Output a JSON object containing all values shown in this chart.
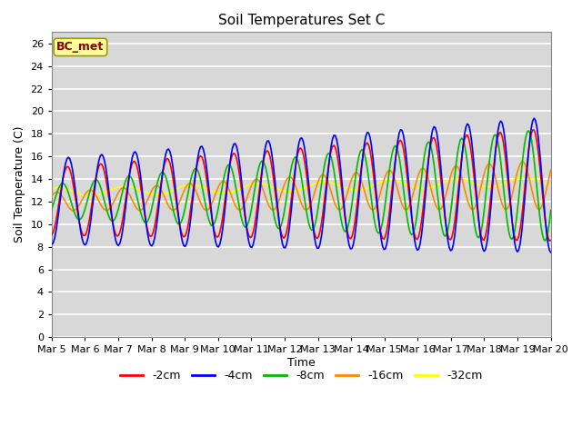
{
  "title": "Soil Temperatures Set C",
  "xlabel": "Time",
  "ylabel": "Soil Temperature (C)",
  "ylim": [
    0,
    27
  ],
  "yticks": [
    0,
    2,
    4,
    6,
    8,
    10,
    12,
    14,
    16,
    18,
    20,
    22,
    24,
    26
  ],
  "date_labels": [
    "Mar 5",
    "Mar 6",
    "Mar 7",
    "Mar 8",
    "Mar 9",
    "Mar 10",
    "Mar 11",
    "Mar 12",
    "Mar 13",
    "Mar 14",
    "Mar 15",
    "Mar 16",
    "Mar 17",
    "Mar 18",
    "Mar 19",
    "Mar 20"
  ],
  "legend_labels": [
    "-2cm",
    "-4cm",
    "-8cm",
    "-16cm",
    "-32cm"
  ],
  "line_colors": [
    "#ff0000",
    "#0000ff",
    "#00bb00",
    "#ff8800",
    "#ffff00"
  ],
  "line_widths": [
    1.2,
    1.2,
    1.2,
    1.2,
    1.2
  ],
  "annotation_text": "BC_met",
  "annotation_color": "#8b0000",
  "annotation_bg": "#ffff99",
  "title_fontsize": 11,
  "label_fontsize": 9,
  "tick_fontsize": 8
}
